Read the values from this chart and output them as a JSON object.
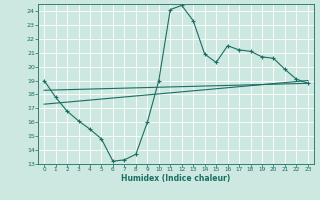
{
  "xlabel": "Humidex (Indice chaleur)",
  "xlim": [
    -0.5,
    23.5
  ],
  "ylim": [
    13,
    24.5
  ],
  "yticks": [
    13,
    14,
    15,
    16,
    17,
    18,
    19,
    20,
    21,
    22,
    23,
    24
  ],
  "xticks": [
    0,
    1,
    2,
    3,
    4,
    5,
    6,
    7,
    8,
    9,
    10,
    11,
    12,
    13,
    14,
    15,
    16,
    17,
    18,
    19,
    20,
    21,
    22,
    23
  ],
  "bg_color": "#cce8e0",
  "line_color": "#1a6e63",
  "grid_color": "#b0d8d0",
  "line1_x": [
    0,
    1,
    2,
    3,
    4,
    5,
    6,
    7,
    8,
    9,
    10,
    11,
    12,
    13,
    14,
    15,
    16,
    17,
    18,
    19,
    20,
    21,
    22,
    23
  ],
  "line1_y": [
    19.0,
    17.8,
    16.8,
    16.1,
    15.5,
    14.8,
    13.2,
    13.3,
    13.7,
    16.0,
    19.0,
    24.1,
    24.4,
    23.3,
    20.9,
    20.3,
    21.5,
    21.2,
    21.1,
    20.7,
    20.6,
    19.8,
    19.1,
    18.8
  ],
  "line2_x": [
    0,
    23
  ],
  "line2_y": [
    17.3,
    19.0
  ],
  "line3_x": [
    0,
    23
  ],
  "line3_y": [
    18.3,
    18.8
  ]
}
